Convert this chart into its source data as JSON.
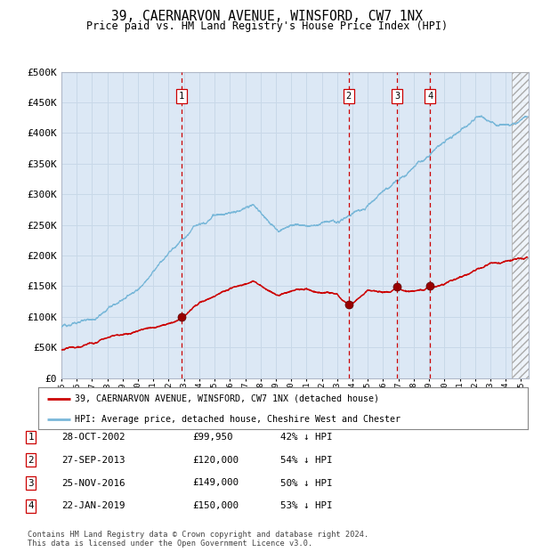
{
  "title": "39, CAERNARVON AVENUE, WINSFORD, CW7 1NX",
  "subtitle": "Price paid vs. HM Land Registry's House Price Index (HPI)",
  "hpi_color": "#7ab8d9",
  "price_color": "#cc0000",
  "bg_plot": "#dce8f5",
  "bg_figure": "#ffffff",
  "grid_color": "#c8d8e8",
  "ylim": [
    0,
    500000
  ],
  "yticks": [
    0,
    50000,
    100000,
    150000,
    200000,
    250000,
    300000,
    350000,
    400000,
    450000,
    500000
  ],
  "ytick_labels": [
    "£0",
    "£50K",
    "£100K",
    "£150K",
    "£200K",
    "£250K",
    "£300K",
    "£350K",
    "£400K",
    "£450K",
    "£500K"
  ],
  "transactions": [
    {
      "label": "1",
      "date": "28-OCT-2002",
      "price": 99950,
      "pct": "42%",
      "x_year": 2002.83
    },
    {
      "label": "2",
      "date": "27-SEP-2013",
      "price": 120000,
      "pct": "54%",
      "x_year": 2013.75
    },
    {
      "label": "3",
      "date": "25-NOV-2016",
      "price": 149000,
      "pct": "50%",
      "x_year": 2016.9
    },
    {
      "label": "4",
      "date": "22-JAN-2019",
      "price": 150000,
      "pct": "53%",
      "x_year": 2019.07
    }
  ],
  "legend_line1": "39, CAERNARVON AVENUE, WINSFORD, CW7 1NX (detached house)",
  "legend_line2": "HPI: Average price, detached house, Cheshire West and Chester",
  "table_rows": [
    [
      "1",
      "28-OCT-2002",
      "£99,950",
      "42% ↓ HPI"
    ],
    [
      "2",
      "27-SEP-2013",
      "£120,000",
      "54% ↓ HPI"
    ],
    [
      "3",
      "25-NOV-2016",
      "£149,000",
      "50% ↓ HPI"
    ],
    [
      "4",
      "22-JAN-2019",
      "£150,000",
      "53% ↓ HPI"
    ]
  ],
  "footer": "Contains HM Land Registry data © Crown copyright and database right 2024.\nThis data is licensed under the Open Government Licence v3.0.",
  "xlim_start": 1995.0,
  "xlim_end": 2025.5,
  "hatch_start": 2024.42
}
